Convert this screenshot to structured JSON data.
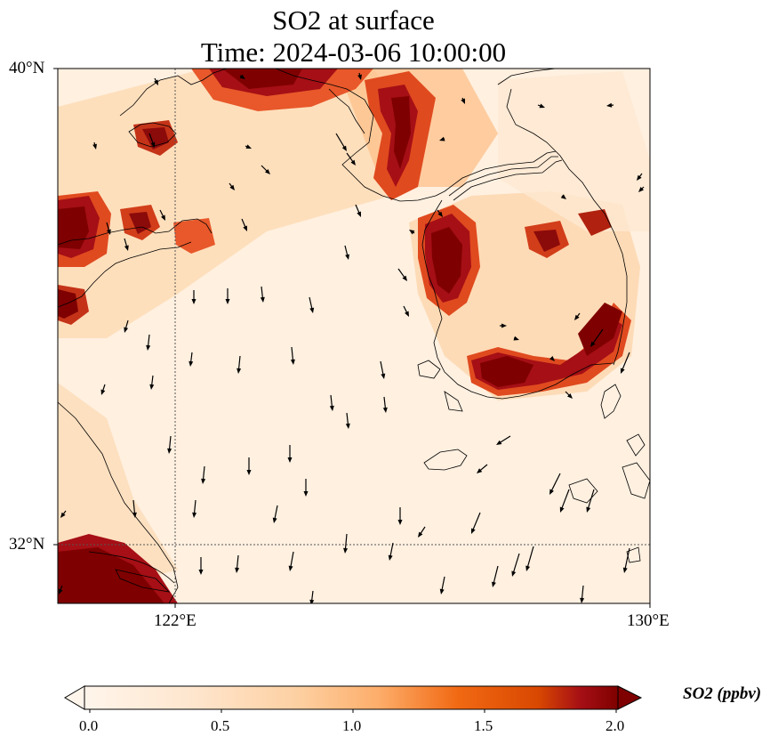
{
  "title": {
    "line1": "SO2 at surface",
    "line2": "Time: 2024-03-06 10:00:00"
  },
  "map": {
    "extent": {
      "lon": [
        120,
        130
      ],
      "lat": [
        30.7,
        40
      ]
    },
    "lat_ticks": [
      "40°N",
      "32°N"
    ],
    "lon_ticks": [
      "122°E",
      "130°E"
    ],
    "gridlines": {
      "lon": [
        122
      ],
      "lat": [
        32
      ]
    }
  },
  "colorbar": {
    "label": "SO2 (ppbv)",
    "ticks": [
      "0.0",
      "0.5",
      "1.0",
      "1.5",
      "2.0"
    ],
    "range": [
      0,
      2
    ],
    "colors": [
      "#fff5eb",
      "#fdd0a2",
      "#fd8d3c",
      "#d94801",
      "#a50f15",
      "#7f0000"
    ]
  }
}
